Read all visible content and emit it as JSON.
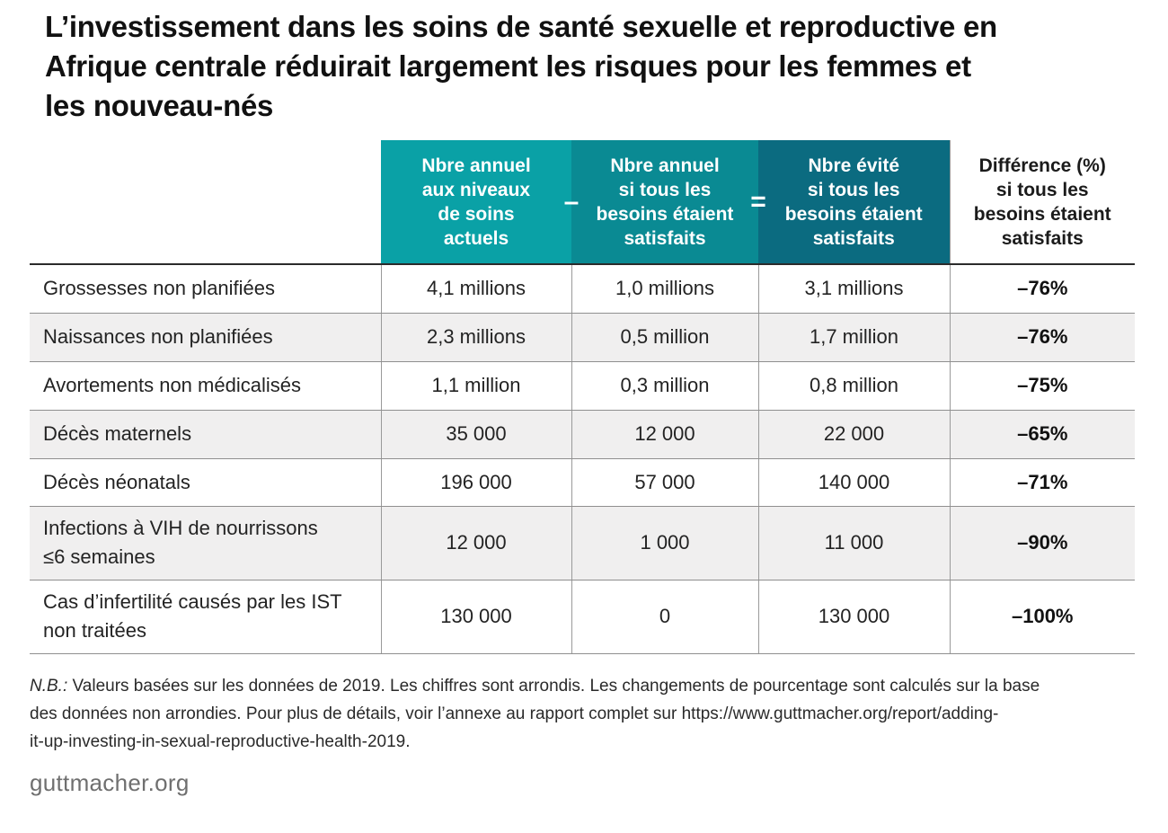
{
  "title_lines": [
    "L’investissement dans les soins de santé sexuelle et reproductive en",
    "Afrique centrale réduirait largement les risques pour les femmes et",
    "les nouveau-nés"
  ],
  "table": {
    "headers": [
      {
        "lines": [
          "Nbre annuel",
          "aux niveaux",
          "de soins",
          "actuels"
        ],
        "color": "#0aa1a6"
      },
      {
        "lines": [
          "Nbre annuel",
          "si tous les",
          "besoins étaient",
          "satisfaits"
        ],
        "color": "#0a8a93"
      },
      {
        "lines": [
          "Nbre évité",
          "si tous les",
          "besoins étaient",
          "satisfaits"
        ],
        "color": "#0b6b80"
      },
      {
        "lines": [
          "Différence (%)",
          "si tous les",
          "besoins étaient",
          "satisfaits"
        ]
      }
    ],
    "operators": {
      "minus": "–",
      "equals": "="
    },
    "rows": [
      {
        "label": [
          "Grossesses non planifiées"
        ],
        "current": "4,1 millions",
        "all_met": "1,0 millions",
        "averted": "3,1 millions",
        "difference": "–76%"
      },
      {
        "label": [
          "Naissances non planifiées"
        ],
        "current": "2,3 millions",
        "all_met": "0,5 million",
        "averted": "1,7 million",
        "difference": "–76%"
      },
      {
        "label": [
          "Avortements non médicalisés"
        ],
        "current": "1,1 million",
        "all_met": "0,3 million",
        "averted": "0,8 million",
        "difference": "–75%"
      },
      {
        "label": [
          "Décès maternels"
        ],
        "current": "35 000",
        "all_met": "12 000",
        "averted": "22 000",
        "difference": "–65%"
      },
      {
        "label": [
          "Décès néonatals"
        ],
        "current": "196 000",
        "all_met": "57 000",
        "averted": "140 000",
        "difference": "–71%"
      },
      {
        "label": [
          "Infections à VIH de nourrissons",
          "≤6 semaines"
        ],
        "current": "12 000",
        "all_met": "1 000",
        "averted": "11 000",
        "difference": "–90%"
      },
      {
        "label": [
          "Cas d’infertilité causés par les IST",
          "non traitées"
        ],
        "current": "130 000",
        "all_met": "0",
        "averted": "130 000",
        "difference": "–100%"
      }
    ]
  },
  "note": {
    "prefix": "N.B.:",
    "line1": " Valeurs basées sur les données de 2019. Les chiffres sont arrondis. Les changements de pourcentage sont calculés sur la base",
    "line2": "des données non arrondies. Pour plus de détails, voir l’annexe au rapport complet sur https://www.guttmacher.org/report/adding-",
    "line3": "it-up-investing-in-sexual-reproductive-health-2019."
  },
  "source": "guttmacher.org"
}
